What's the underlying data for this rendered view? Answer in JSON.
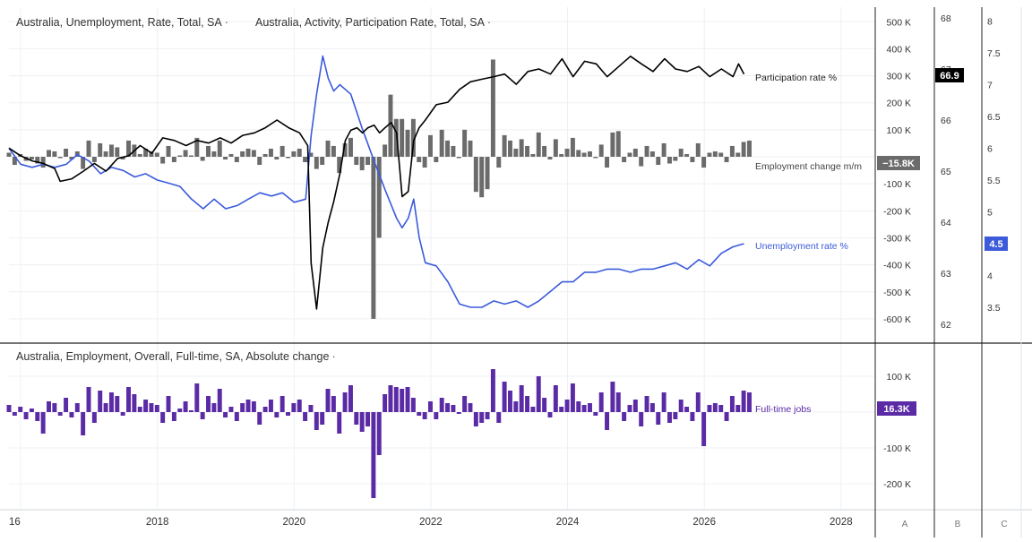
{
  "chart_data": [
    {
      "type": "line+bar",
      "titles": [
        {
          "text": "Australia, Unemployment, Rate, Total, SA",
          "menu": "·"
        },
        {
          "text": "Australia, Activity, Participation Rate, Total, SA",
          "menu": "·"
        }
      ],
      "series": [
        {
          "name": "Participation rate %",
          "type": "line",
          "color": "#000000",
          "scale": "B",
          "last_value_label": "66.9",
          "points": [
            [
              2015.83,
              65.45
            ],
            [
              2016.0,
              65.3
            ],
            [
              2016.17,
              65.2
            ],
            [
              2016.33,
              65.15
            ],
            [
              2016.5,
              65.05
            ],
            [
              2016.58,
              64.8
            ],
            [
              2016.75,
              64.85
            ],
            [
              2016.92,
              65.0
            ],
            [
              2017.08,
              65.15
            ],
            [
              2017.25,
              65.0
            ],
            [
              2017.42,
              65.25
            ],
            [
              2017.58,
              65.3
            ],
            [
              2017.75,
              65.5
            ],
            [
              2017.92,
              65.35
            ],
            [
              2018.08,
              65.65
            ],
            [
              2018.25,
              65.6
            ],
            [
              2018.42,
              65.5
            ],
            [
              2018.58,
              65.6
            ],
            [
              2018.75,
              65.55
            ],
            [
              2018.92,
              65.65
            ],
            [
              2019.08,
              65.55
            ],
            [
              2019.25,
              65.7
            ],
            [
              2019.42,
              65.75
            ],
            [
              2019.58,
              65.85
            ],
            [
              2019.75,
              66.0
            ],
            [
              2019.92,
              65.85
            ],
            [
              2020.08,
              65.75
            ],
            [
              2020.2,
              65.5
            ],
            [
              2020.25,
              63.2
            ],
            [
              2020.33,
              62.3
            ],
            [
              2020.42,
              63.5
            ],
            [
              2020.5,
              64.0
            ],
            [
              2020.58,
              64.4
            ],
            [
              2020.67,
              64.95
            ],
            [
              2020.75,
              65.6
            ],
            [
              2020.83,
              65.8
            ],
            [
              2020.92,
              65.85
            ],
            [
              2021.0,
              65.75
            ],
            [
              2021.08,
              65.85
            ],
            [
              2021.17,
              65.9
            ],
            [
              2021.25,
              65.75
            ],
            [
              2021.33,
              65.85
            ],
            [
              2021.42,
              65.95
            ],
            [
              2021.5,
              65.75
            ],
            [
              2021.58,
              64.5
            ],
            [
              2021.67,
              64.6
            ],
            [
              2021.75,
              65.6
            ],
            [
              2021.83,
              65.85
            ],
            [
              2021.92,
              66.0
            ],
            [
              2022.08,
              66.3
            ],
            [
              2022.25,
              66.35
            ],
            [
              2022.42,
              66.6
            ],
            [
              2022.58,
              66.75
            ],
            [
              2022.75,
              66.8
            ],
            [
              2022.92,
              66.85
            ],
            [
              2023.08,
              66.9
            ],
            [
              2023.25,
              66.7
            ],
            [
              2023.42,
              66.95
            ],
            [
              2023.58,
              67.0
            ],
            [
              2023.75,
              66.9
            ],
            [
              2023.92,
              67.2
            ],
            [
              2024.08,
              66.85
            ],
            [
              2024.25,
              67.15
            ],
            [
              2024.42,
              67.1
            ],
            [
              2024.58,
              66.85
            ],
            [
              2024.75,
              67.05
            ],
            [
              2024.92,
              67.25
            ],
            [
              2025.08,
              67.1
            ],
            [
              2025.25,
              66.95
            ],
            [
              2025.42,
              67.2
            ],
            [
              2025.58,
              67.0
            ],
            [
              2025.75,
              66.95
            ],
            [
              2025.92,
              67.05
            ],
            [
              2026.08,
              66.85
            ],
            [
              2026.25,
              67.0
            ],
            [
              2026.42,
              66.85
            ],
            [
              2026.5,
              67.1
            ],
            [
              2026.58,
              66.9
            ]
          ]
        },
        {
          "name": "Unemployment rate %",
          "type": "line",
          "color": "#3b5bdb",
          "scale": "C",
          "last_value_label": "4.5",
          "points": [
            [
              2015.83,
              6.0
            ],
            [
              2016.0,
              5.75
            ],
            [
              2016.17,
              5.7
            ],
            [
              2016.33,
              5.75
            ],
            [
              2016.5,
              5.7
            ],
            [
              2016.67,
              5.75
            ],
            [
              2016.83,
              5.9
            ],
            [
              2017.0,
              5.8
            ],
            [
              2017.17,
              5.6
            ],
            [
              2017.33,
              5.7
            ],
            [
              2017.5,
              5.65
            ],
            [
              2017.67,
              5.55
            ],
            [
              2017.83,
              5.6
            ],
            [
              2018.0,
              5.5
            ],
            [
              2018.17,
              5.45
            ],
            [
              2018.33,
              5.4
            ],
            [
              2018.5,
              5.2
            ],
            [
              2018.67,
              5.05
            ],
            [
              2018.83,
              5.2
            ],
            [
              2019.0,
              5.05
            ],
            [
              2019.17,
              5.1
            ],
            [
              2019.33,
              5.2
            ],
            [
              2019.5,
              5.3
            ],
            [
              2019.67,
              5.25
            ],
            [
              2019.83,
              5.3
            ],
            [
              2020.0,
              5.15
            ],
            [
              2020.17,
              5.2
            ],
            [
              2020.25,
              6.2
            ],
            [
              2020.33,
              6.85
            ],
            [
              2020.42,
              7.45
            ],
            [
              2020.5,
              7.1
            ],
            [
              2020.58,
              6.9
            ],
            [
              2020.67,
              7.0
            ],
            [
              2020.83,
              6.85
            ],
            [
              2021.0,
              6.3
            ],
            [
              2021.17,
              5.8
            ],
            [
              2021.33,
              5.35
            ],
            [
              2021.5,
              4.9
            ],
            [
              2021.58,
              4.75
            ],
            [
              2021.67,
              4.9
            ],
            [
              2021.75,
              5.2
            ],
            [
              2021.83,
              4.6
            ],
            [
              2021.92,
              4.2
            ],
            [
              2022.08,
              4.15
            ],
            [
              2022.25,
              3.9
            ],
            [
              2022.42,
              3.55
            ],
            [
              2022.58,
              3.5
            ],
            [
              2022.75,
              3.5
            ],
            [
              2022.92,
              3.6
            ],
            [
              2023.08,
              3.55
            ],
            [
              2023.25,
              3.6
            ],
            [
              2023.42,
              3.5
            ],
            [
              2023.58,
              3.6
            ],
            [
              2023.75,
              3.75
            ],
            [
              2023.92,
              3.9
            ],
            [
              2024.08,
              3.9
            ],
            [
              2024.25,
              4.05
            ],
            [
              2024.42,
              4.05
            ],
            [
              2024.58,
              4.1
            ],
            [
              2024.75,
              4.1
            ],
            [
              2024.92,
              4.05
            ],
            [
              2025.08,
              4.1
            ],
            [
              2025.25,
              4.1
            ],
            [
              2025.42,
              4.15
            ],
            [
              2025.58,
              4.2
            ],
            [
              2025.75,
              4.1
            ],
            [
              2025.92,
              4.25
            ],
            [
              2026.08,
              4.15
            ],
            [
              2026.25,
              4.35
            ],
            [
              2026.42,
              4.45
            ],
            [
              2026.58,
              4.5
            ]
          ]
        },
        {
          "name": "Employment change m/m",
          "type": "bar",
          "color": "#6b6b6b",
          "scale": "A",
          "last_value_label": "−15.8K",
          "start": 2015.83,
          "step": 0.0833,
          "values": [
            15,
            -30,
            10,
            -15,
            -10,
            -25,
            -40,
            25,
            20,
            -5,
            30,
            -10,
            20,
            -45,
            60,
            -20,
            50,
            20,
            45,
            35,
            -10,
            60,
            45,
            10,
            30,
            20,
            15,
            -25,
            40,
            -20,
            5,
            25,
            5,
            70,
            -15,
            40,
            20,
            60,
            -10,
            10,
            -20,
            20,
            30,
            25,
            -30,
            10,
            30,
            -10,
            40,
            -5,
            20,
            30,
            -20,
            15,
            -45,
            -30,
            60,
            40,
            -60,
            50,
            70,
            -30,
            -50,
            -30,
            -600,
            -300,
            45,
            230,
            140,
            140,
            100,
            140,
            -20,
            -40,
            80,
            -20,
            100,
            60,
            40,
            -5,
            100,
            60,
            -130,
            -150,
            -120,
            360,
            -40,
            80,
            60,
            30,
            65,
            40,
            10,
            90,
            40,
            -10,
            65,
            10,
            30,
            70,
            25,
            15,
            20,
            -5,
            45,
            -40,
            90,
            95,
            -20,
            15,
            30,
            -35,
            40,
            20,
            -30,
            50,
            -25,
            -15,
            30,
            10,
            -20,
            50,
            -40,
            15,
            20,
            15,
            -20,
            40,
            15,
            55,
            60,
            -60,
            45,
            5,
            20,
            10,
            10,
            40,
            20,
            -30,
            40,
            -20,
            10,
            -40,
            50,
            50,
            10,
            60,
            80,
            -20,
            5,
            -50,
            65,
            70,
            -40,
            50,
            -30,
            25,
            40,
            -20,
            40,
            20,
            50,
            -20,
            50,
            -20,
            30,
            -40,
            25,
            -25,
            60,
            -10,
            -15,
            -40,
            -25,
            -50,
            -50,
            -30,
            30,
            -60,
            50,
            -25,
            -30,
            -50,
            -20,
            10,
            70,
            45,
            60,
            80,
            -30,
            -20,
            -15,
            -40,
            20,
            -30,
            30,
            -30,
            40,
            -25,
            90,
            -15.8
          ]
        }
      ],
      "scale_A": {
        "ticks": [
          "500 K",
          "400 K",
          "300 K",
          "200 K",
          "100 K",
          "-100 K",
          "-200 K",
          "-300 K",
          "-400 K",
          "-500 K",
          "-600 K"
        ],
        "range": [
          -600,
          500
        ]
      },
      "scale_B": {
        "ticks": [
          "68",
          "67",
          "66",
          "65",
          "64",
          "63",
          "62"
        ],
        "range": [
          62,
          68
        ]
      },
      "scale_C": {
        "ticks": [
          "8",
          "7.5",
          "7",
          "6.5",
          "6",
          "5.5",
          "5",
          "4.5",
          "4",
          "3.5"
        ],
        "range": [
          3.5,
          8
        ]
      }
    },
    {
      "type": "bar",
      "titles": [
        {
          "text": "Australia, Employment, Overall, Full-time, SA, Absolute change",
          "menu": "·"
        }
      ],
      "series": [
        {
          "name": "Full-time jobs",
          "type": "bar",
          "color": "#5b2ba6",
          "scale": "A",
          "last_value_label": "16.3K",
          "start": 2015.83,
          "step": 0.0833,
          "values": [
            20,
            -10,
            15,
            -20,
            10,
            -25,
            -60,
            30,
            25,
            -10,
            40,
            -15,
            25,
            -65,
            70,
            -30,
            60,
            25,
            55,
            45,
            -10,
            70,
            50,
            15,
            35,
            25,
            20,
            -30,
            45,
            -25,
            10,
            30,
            5,
            80,
            -20,
            45,
            25,
            65,
            -15,
            15,
            -25,
            25,
            35,
            30,
            -35,
            15,
            35,
            -15,
            45,
            -10,
            25,
            35,
            -25,
            20,
            -50,
            -35,
            65,
            45,
            -60,
            55,
            75,
            -35,
            -55,
            -40,
            -240,
            -120,
            50,
            75,
            70,
            65,
            70,
            40,
            -10,
            -20,
            30,
            -20,
            40,
            25,
            20,
            -5,
            45,
            25,
            -40,
            -30,
            -20,
            120,
            -30,
            85,
            60,
            30,
            75,
            45,
            15,
            100,
            40,
            -15,
            75,
            15,
            35,
            80,
            30,
            20,
            25,
            -10,
            55,
            -50,
            85,
            55,
            -25,
            20,
            35,
            -40,
            45,
            25,
            -35,
            55,
            -30,
            -20,
            35,
            15,
            -25,
            55,
            -95,
            20,
            25,
            20,
            -25,
            45,
            20,
            60,
            55,
            -45,
            50,
            10,
            25,
            15,
            15,
            45,
            25,
            -35,
            45,
            -25,
            15,
            -45,
            55,
            55,
            15,
            65,
            70,
            -25,
            10,
            -55,
            70,
            65,
            -45,
            55,
            -35,
            30,
            45,
            -25,
            45,
            25,
            55,
            -25,
            55,
            -25,
            35,
            -45,
            30,
            -30,
            65,
            -15,
            -20,
            -45,
            -30,
            -60,
            -60,
            -35,
            35,
            -65,
            55,
            -30,
            -35,
            -55,
            -25,
            15,
            70,
            45,
            65,
            75,
            -35,
            -25,
            -20,
            -45,
            25,
            -35,
            35,
            -35,
            45,
            -30,
            50,
            16.3
          ]
        }
      ],
      "scale_A": {
        "ticks": [
          "100 K",
          "-100 K",
          "-200 K"
        ],
        "range": [
          -240,
          140
        ]
      }
    }
  ],
  "x_axis": {
    "ticks": [
      "16",
      "2018",
      "2020",
      "2022",
      "2024",
      "2026",
      "2028"
    ],
    "range": [
      2015.83,
      2028.5
    ]
  },
  "scale_letters": [
    "A",
    "B",
    "C"
  ]
}
